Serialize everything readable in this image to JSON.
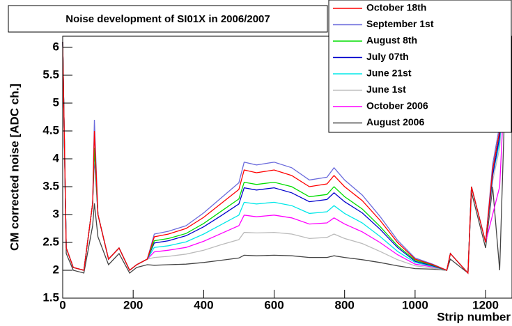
{
  "chart_data": {
    "type": "line",
    "title": "Noise development of SI01X in 2006/2007",
    "x_label": "Strip number",
    "y_label": "CM corrected noise [ADC ch.]",
    "x": [
      0,
      10,
      30,
      60,
      85,
      90,
      100,
      130,
      160,
      190,
      210,
      240,
      260,
      300,
      350,
      400,
      450,
      500,
      515,
      550,
      600,
      650,
      700,
      750,
      770,
      800,
      850,
      900,
      950,
      1000,
      1050,
      1090,
      1100,
      1150,
      1160,
      1200,
      1220,
      1240,
      1260,
      1275
    ],
    "xlim": [
      0,
      1275
    ],
    "xticks": [
      0,
      200,
      400,
      600,
      800,
      1000,
      1200
    ],
    "ylim": [
      1.5,
      6.2
    ],
    "yticks": [
      1.5,
      2,
      2.5,
      3,
      3.5,
      4,
      4.5,
      5,
      5.5,
      6
    ],
    "legend": "top-right",
    "series": [
      {
        "name": "October 18th",
        "color": "#ff0000",
        "values": [
          6.1,
          2.4,
          2.05,
          2.0,
          3.2,
          4.5,
          3.0,
          2.2,
          2.4,
          2.0,
          2.1,
          2.2,
          2.6,
          2.65,
          2.75,
          2.95,
          3.2,
          3.45,
          3.8,
          3.75,
          3.8,
          3.7,
          3.5,
          3.55,
          3.7,
          3.5,
          3.25,
          2.9,
          2.5,
          2.2,
          2.1,
          2.0,
          2.3,
          1.95,
          3.5,
          2.5,
          3.8,
          4.5,
          6.1,
          6.1
        ]
      },
      {
        "name": "September 1st",
        "color": "#6b6bdc",
        "values": [
          6.1,
          2.4,
          2.05,
          2.0,
          3.2,
          4.7,
          3.0,
          2.2,
          2.4,
          2.0,
          2.1,
          2.2,
          2.65,
          2.7,
          2.8,
          3.03,
          3.3,
          3.57,
          3.94,
          3.89,
          3.94,
          3.84,
          3.62,
          3.67,
          3.84,
          3.62,
          3.35,
          2.97,
          2.54,
          2.22,
          2.11,
          2.0,
          2.3,
          1.95,
          3.5,
          2.5,
          3.9,
          4.6,
          6.1,
          6.1
        ]
      },
      {
        "name": "August 8th",
        "color": "#00dd00",
        "values": [
          6.1,
          2.4,
          2.05,
          2.0,
          3.2,
          4.2,
          3.0,
          2.2,
          2.4,
          2.0,
          2.1,
          2.2,
          2.53,
          2.57,
          2.66,
          2.84,
          3.06,
          3.28,
          3.58,
          3.54,
          3.58,
          3.5,
          3.32,
          3.36,
          3.5,
          3.32,
          3.1,
          2.79,
          2.44,
          2.18,
          2.09,
          2.0,
          2.3,
          1.95,
          3.5,
          2.5,
          3.8,
          4.5,
          6.1,
          6.1
        ]
      },
      {
        "name": "July 07th",
        "color": "#0000cc",
        "values": [
          6.1,
          2.4,
          2.05,
          2.0,
          3.2,
          4.2,
          3.0,
          2.2,
          2.4,
          2.0,
          2.1,
          2.2,
          2.49,
          2.53,
          2.62,
          2.78,
          2.98,
          3.19,
          3.48,
          3.44,
          3.48,
          3.39,
          3.23,
          3.27,
          3.39,
          3.23,
          3.03,
          2.74,
          2.41,
          2.16,
          2.08,
          2.0,
          2.3,
          1.95,
          3.5,
          2.5,
          3.7,
          4.4,
          6.1,
          6.1
        ]
      },
      {
        "name": "June 21st",
        "color": "#00e8e8",
        "values": [
          6.1,
          2.4,
          2.05,
          2.0,
          3.2,
          4.2,
          3.0,
          2.2,
          2.4,
          2.0,
          2.1,
          2.2,
          2.41,
          2.44,
          2.51,
          2.65,
          2.82,
          2.99,
          3.22,
          3.19,
          3.22,
          3.16,
          3.02,
          3.05,
          3.16,
          3.02,
          2.85,
          2.61,
          2.34,
          2.14,
          2.07,
          2.0,
          2.3,
          1.95,
          3.5,
          2.5,
          3.7,
          4.3,
          6.1,
          6.1
        ]
      },
      {
        "name": "June 1st",
        "color": "#bbbbbb",
        "values": [
          6.1,
          2.4,
          2.05,
          2.0,
          3.2,
          4.1,
          3.0,
          2.2,
          2.4,
          2.0,
          2.1,
          2.2,
          2.23,
          2.25,
          2.29,
          2.36,
          2.46,
          2.55,
          2.68,
          2.67,
          2.68,
          2.65,
          2.57,
          2.59,
          2.65,
          2.57,
          2.48,
          2.34,
          2.19,
          2.08,
          2.04,
          2.0,
          2.3,
          1.95,
          3.5,
          2.5,
          3.6,
          4.2,
          6.1,
          6.1
        ]
      },
      {
        "name": "October 2006",
        "color": "#ff00ff",
        "values": [
          6.1,
          2.4,
          2.05,
          2.0,
          3.2,
          4.0,
          3.0,
          2.2,
          2.4,
          2.0,
          2.1,
          2.2,
          2.33,
          2.36,
          2.41,
          2.52,
          2.66,
          2.8,
          2.99,
          2.96,
          2.99,
          2.94,
          2.83,
          2.85,
          2.94,
          2.83,
          2.69,
          2.5,
          2.28,
          2.11,
          2.06,
          2.0,
          2.3,
          1.95,
          3.5,
          2.5,
          3.0,
          3.5,
          6.1,
          6.1
        ]
      },
      {
        "name": "August 2006",
        "color": "#444444",
        "values": [
          6.1,
          2.3,
          2.0,
          1.95,
          2.8,
          3.2,
          2.6,
          2.1,
          2.3,
          1.95,
          2.05,
          2.1,
          2.09,
          2.1,
          2.11,
          2.14,
          2.18,
          2.22,
          2.27,
          2.26,
          2.27,
          2.26,
          2.23,
          2.23,
          2.26,
          2.23,
          2.19,
          2.14,
          2.08,
          2.03,
          2.02,
          2.0,
          2.2,
          1.95,
          3.4,
          2.4,
          3.5,
          2.0,
          6.1,
          6.1
        ]
      }
    ]
  }
}
